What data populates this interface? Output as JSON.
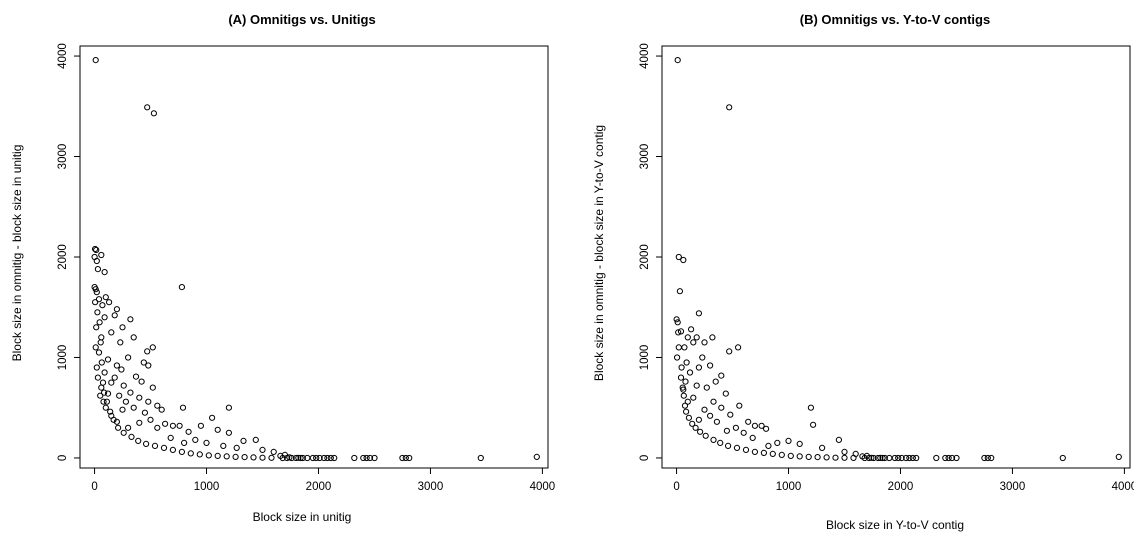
{
  "chart_data": [
    {
      "type": "scatter",
      "title": "(A) Omnitigs vs. Unitigs",
      "xlabel": "Block size in unitig",
      "ylabel": "Block size in omnitig - block size in unitig",
      "xlim": [
        -130,
        4050
      ],
      "ylim": [
        -100,
        4100
      ],
      "xticks": [
        0,
        1000,
        2000,
        3000,
        4000
      ],
      "yticks": [
        0,
        1000,
        2000,
        3000,
        4000
      ],
      "xtick_labels": [
        "0",
        "1000",
        "2000",
        "3000",
        "4000"
      ],
      "ytick_labels": [
        "0",
        "1000",
        "2000",
        "3000",
        "4000"
      ],
      "grid": false,
      "marker": "open-circle",
      "points": [
        [
          10,
          3960
        ],
        [
          470,
          3490
        ],
        [
          530,
          3430
        ],
        [
          5,
          2080
        ],
        [
          15,
          2070
        ],
        [
          0,
          2000
        ],
        [
          60,
          2020
        ],
        [
          20,
          1960
        ],
        [
          30,
          1880
        ],
        [
          90,
          1850
        ],
        [
          0,
          1700
        ],
        [
          10,
          1680
        ],
        [
          20,
          1650
        ],
        [
          780,
          1700
        ],
        [
          100,
          1600
        ],
        [
          130,
          1550
        ],
        [
          40,
          1580
        ],
        [
          70,
          1520
        ],
        [
          200,
          1480
        ],
        [
          180,
          1420
        ],
        [
          320,
          1380
        ],
        [
          90,
          1400
        ],
        [
          250,
          1300
        ],
        [
          150,
          1250
        ],
        [
          60,
          1200
        ],
        [
          230,
          1150
        ],
        [
          350,
          1200
        ],
        [
          520,
          1100
        ],
        [
          470,
          1060
        ],
        [
          300,
          1000
        ],
        [
          440,
          950
        ],
        [
          40,
          1050
        ],
        [
          120,
          980
        ],
        [
          200,
          920
        ],
        [
          480,
          920
        ],
        [
          240,
          880
        ],
        [
          90,
          850
        ],
        [
          180,
          800
        ],
        [
          370,
          810
        ],
        [
          420,
          760
        ],
        [
          260,
          720
        ],
        [
          520,
          700
        ],
        [
          150,
          750
        ],
        [
          60,
          700
        ],
        [
          1200,
          500
        ],
        [
          790,
          500
        ],
        [
          320,
          650
        ],
        [
          220,
          620
        ],
        [
          400,
          600
        ],
        [
          480,
          560
        ],
        [
          280,
          560
        ],
        [
          120,
          640
        ],
        [
          560,
          520
        ],
        [
          600,
          480
        ],
        [
          350,
          500
        ],
        [
          450,
          450
        ],
        [
          1050,
          400
        ],
        [
          250,
          480
        ],
        [
          700,
          320
        ],
        [
          630,
          340
        ],
        [
          760,
          320
        ],
        [
          950,
          320
        ],
        [
          1100,
          280
        ],
        [
          1200,
          250
        ],
        [
          840,
          260
        ],
        [
          560,
          300
        ],
        [
          500,
          380
        ],
        [
          1330,
          170
        ],
        [
          1440,
          180
        ],
        [
          900,
          180
        ],
        [
          1000,
          150
        ],
        [
          680,
          200
        ],
        [
          800,
          150
        ],
        [
          1150,
          120
        ],
        [
          1270,
          100
        ],
        [
          1500,
          80
        ],
        [
          1600,
          60
        ],
        [
          1700,
          30
        ],
        [
          400,
          350
        ],
        [
          300,
          300
        ],
        [
          200,
          360
        ],
        [
          150,
          420
        ],
        [
          100,
          500
        ],
        [
          80,
          560
        ],
        [
          50,
          620
        ],
        [
          30,
          800
        ],
        [
          20,
          900
        ],
        [
          10,
          1100
        ],
        [
          15,
          1300
        ],
        [
          25,
          1450
        ],
        [
          5,
          1550
        ],
        [
          45,
          1350
        ],
        [
          55,
          1150
        ],
        [
          65,
          950
        ],
        [
          75,
          750
        ],
        [
          85,
          650
        ],
        [
          110,
          560
        ],
        [
          140,
          460
        ],
        [
          170,
          380
        ],
        [
          210,
          300
        ],
        [
          260,
          250
        ],
        [
          330,
          210
        ],
        [
          390,
          170
        ],
        [
          460,
          140
        ],
        [
          540,
          120
        ],
        [
          620,
          100
        ],
        [
          700,
          80
        ],
        [
          780,
          60
        ],
        [
          860,
          45
        ],
        [
          940,
          35
        ],
        [
          1020,
          25
        ],
        [
          1100,
          20
        ],
        [
          1180,
          15
        ],
        [
          1260,
          10
        ],
        [
          1340,
          8
        ],
        [
          1420,
          5
        ],
        [
          1500,
          3
        ],
        [
          1580,
          2
        ],
        [
          1660,
          20
        ],
        [
          1740,
          5
        ],
        [
          1820,
          2
        ],
        [
          1900,
          0
        ],
        [
          1950,
          0
        ],
        [
          1980,
          0
        ],
        [
          2010,
          0
        ],
        [
          2050,
          0
        ],
        [
          2080,
          0
        ],
        [
          2110,
          0
        ],
        [
          2140,
          0
        ],
        [
          2320,
          0
        ],
        [
          2400,
          0
        ],
        [
          2430,
          0
        ],
        [
          2460,
          0
        ],
        [
          2500,
          0
        ],
        [
          2750,
          0
        ],
        [
          2780,
          0
        ],
        [
          2810,
          0
        ],
        [
          3450,
          0
        ],
        [
          3950,
          10
        ],
        [
          1680,
          0
        ],
        [
          1720,
          0
        ],
        [
          1760,
          0
        ],
        [
          1800,
          0
        ],
        [
          1840,
          0
        ],
        [
          1860,
          0
        ]
      ]
    },
    {
      "type": "scatter",
      "title": "(B) Omnitigs vs. Y-to-V contigs",
      "xlabel": "Block size in Y-to-V contig",
      "ylabel": "Block size in omnitig - block size in Y-to-V contig",
      "xlim": [
        -130,
        4050
      ],
      "ylim": [
        -100,
        4100
      ],
      "xticks": [
        0,
        1000,
        2000,
        3000,
        4000
      ],
      "yticks": [
        0,
        1000,
        2000,
        3000,
        4000
      ],
      "xtick_labels": [
        "0",
        "1000",
        "2000",
        "3000",
        "4000"
      ],
      "ytick_labels": [
        "0",
        "1000",
        "2000",
        "3000",
        "4000"
      ],
      "grid": false,
      "marker": "open-circle",
      "points": [
        [
          10,
          3960
        ],
        [
          470,
          3490
        ],
        [
          20,
          2000
        ],
        [
          60,
          1970
        ],
        [
          30,
          1660
        ],
        [
          200,
          1440
        ],
        [
          0,
          1380
        ],
        [
          10,
          1350
        ],
        [
          130,
          1280
        ],
        [
          40,
          1260
        ],
        [
          100,
          1200
        ],
        [
          180,
          1200
        ],
        [
          320,
          1200
        ],
        [
          250,
          1150
        ],
        [
          150,
          1150
        ],
        [
          70,
          1100
        ],
        [
          550,
          1100
        ],
        [
          470,
          1060
        ],
        [
          230,
          1000
        ],
        [
          90,
          950
        ],
        [
          300,
          920
        ],
        [
          200,
          900
        ],
        [
          120,
          850
        ],
        [
          40,
          800
        ],
        [
          400,
          820
        ],
        [
          350,
          760
        ],
        [
          180,
          720
        ],
        [
          270,
          700
        ],
        [
          60,
          680
        ],
        [
          440,
          640
        ],
        [
          150,
          600
        ],
        [
          330,
          560
        ],
        [
          100,
          560
        ],
        [
          560,
          520
        ],
        [
          400,
          500
        ],
        [
          1200,
          500
        ],
        [
          250,
          480
        ],
        [
          480,
          430
        ],
        [
          300,
          420
        ],
        [
          200,
          380
        ],
        [
          360,
          360
        ],
        [
          1220,
          330
        ],
        [
          640,
          360
        ],
        [
          700,
          320
        ],
        [
          760,
          320
        ],
        [
          800,
          290
        ],
        [
          530,
          300
        ],
        [
          450,
          270
        ],
        [
          600,
          250
        ],
        [
          1450,
          180
        ],
        [
          1000,
          170
        ],
        [
          900,
          150
        ],
        [
          1100,
          140
        ],
        [
          680,
          200
        ],
        [
          820,
          120
        ],
        [
          1300,
          100
        ],
        [
          1500,
          60
        ],
        [
          1600,
          40
        ],
        [
          1700,
          20
        ],
        [
          80,
          760
        ],
        [
          20,
          1100
        ],
        [
          15,
          1250
        ],
        [
          5,
          1000
        ],
        [
          45,
          900
        ],
        [
          55,
          700
        ],
        [
          65,
          620
        ],
        [
          75,
          520
        ],
        [
          85,
          460
        ],
        [
          110,
          400
        ],
        [
          140,
          340
        ],
        [
          170,
          300
        ],
        [
          210,
          260
        ],
        [
          260,
          220
        ],
        [
          330,
          180
        ],
        [
          390,
          150
        ],
        [
          460,
          120
        ],
        [
          540,
          100
        ],
        [
          620,
          80
        ],
        [
          700,
          60
        ],
        [
          780,
          50
        ],
        [
          860,
          40
        ],
        [
          940,
          30
        ],
        [
          1020,
          20
        ],
        [
          1100,
          15
        ],
        [
          1180,
          10
        ],
        [
          1260,
          8
        ],
        [
          1340,
          5
        ],
        [
          1420,
          3
        ],
        [
          1500,
          2
        ],
        [
          1580,
          1
        ],
        [
          1660,
          15
        ],
        [
          1740,
          2
        ],
        [
          1820,
          1
        ],
        [
          1900,
          0
        ],
        [
          1950,
          0
        ],
        [
          1980,
          0
        ],
        [
          2010,
          0
        ],
        [
          2050,
          0
        ],
        [
          2080,
          0
        ],
        [
          2110,
          0
        ],
        [
          2140,
          0
        ],
        [
          2320,
          0
        ],
        [
          2400,
          0
        ],
        [
          2430,
          0
        ],
        [
          2460,
          0
        ],
        [
          2500,
          0
        ],
        [
          2750,
          0
        ],
        [
          2780,
          0
        ],
        [
          2810,
          0
        ],
        [
          3450,
          0
        ],
        [
          3950,
          10
        ],
        [
          1680,
          0
        ],
        [
          1720,
          0
        ],
        [
          1760,
          0
        ],
        [
          1800,
          0
        ],
        [
          1840,
          0
        ],
        [
          1860,
          0
        ]
      ]
    }
  ]
}
